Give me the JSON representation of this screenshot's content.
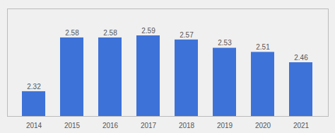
{
  "chart_data": {
    "type": "bar",
    "categories": [
      "2014",
      "2015",
      "2016",
      "2017",
      "2018",
      "2019",
      "2020",
      "2021"
    ],
    "values": [
      2.32,
      2.58,
      2.58,
      2.59,
      2.57,
      2.53,
      2.51,
      2.46
    ],
    "color": "#3d72d8",
    "ylim": [
      2.2,
      2.72
    ],
    "data_labels": true,
    "tick_labels": "x"
  }
}
